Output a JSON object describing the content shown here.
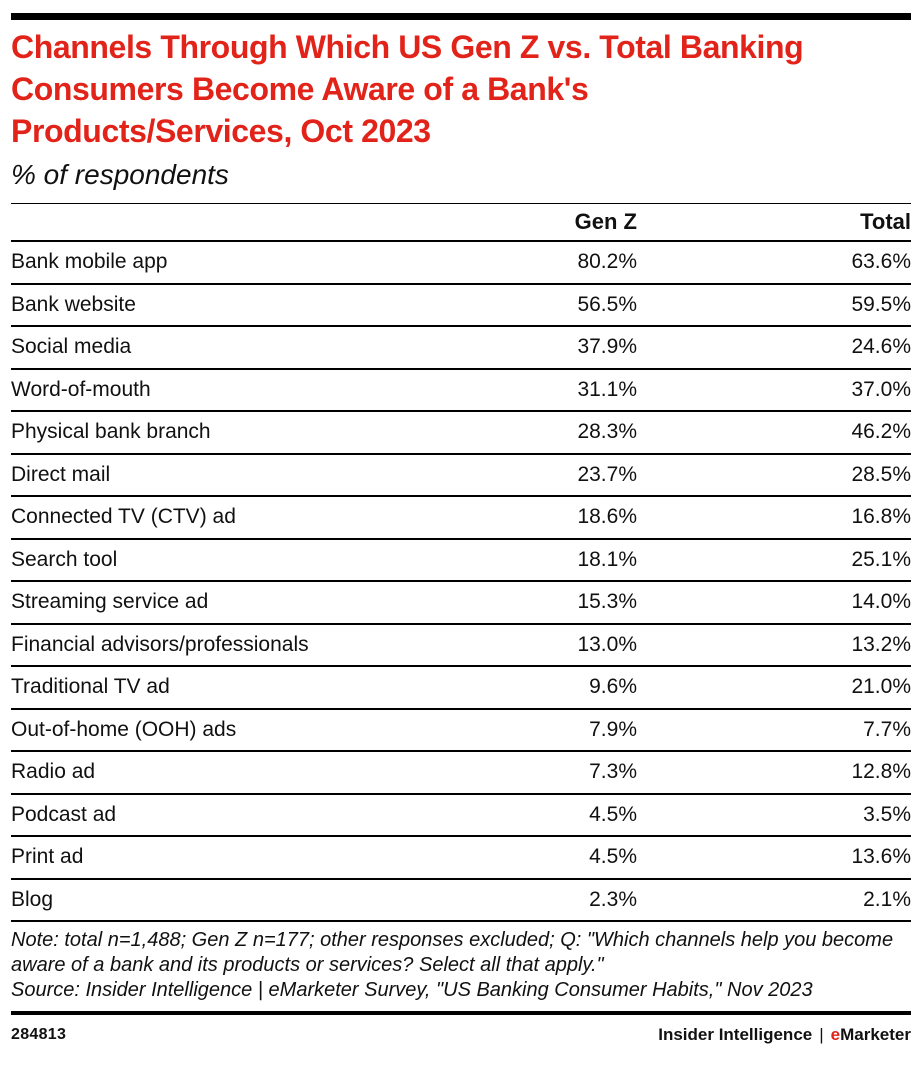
{
  "colors": {
    "accent_red": "#e2231a",
    "bar_black": "#000000",
    "text": "#111111"
  },
  "header": {
    "title": "Channels Through Which US Gen Z vs. Total Banking Consumers Become Aware of a Bank's Products/Services, Oct 2023",
    "subtitle": "% of respondents"
  },
  "table": {
    "header": {
      "genz": "Gen Z",
      "total": "Total"
    },
    "rows": [
      {
        "label": "Bank mobile app",
        "genz": "80.2%",
        "total": "63.6%"
      },
      {
        "label": "Bank website",
        "genz": "56.5%",
        "total": "59.5%"
      },
      {
        "label": "Social media",
        "genz": "37.9%",
        "total": "24.6%"
      },
      {
        "label": "Word-of-mouth",
        "genz": "31.1%",
        "total": "37.0%"
      },
      {
        "label": "Physical bank branch",
        "genz": "28.3%",
        "total": "46.2%"
      },
      {
        "label": "Direct mail",
        "genz": "23.7%",
        "total": "28.5%"
      },
      {
        "label": "Connected TV (CTV) ad",
        "genz": "18.6%",
        "total": "16.8%"
      },
      {
        "label": "Search tool",
        "genz": "18.1%",
        "total": "25.1%"
      },
      {
        "label": "Streaming service ad",
        "genz": "15.3%",
        "total": "14.0%"
      },
      {
        "label": "Financial advisors/professionals",
        "genz": "13.0%",
        "total": "13.2%"
      },
      {
        "label": "Traditional TV ad",
        "genz": "9.6%",
        "total": "21.0%"
      },
      {
        "label": "Out-of-home (OOH) ads",
        "genz": "7.9%",
        "total": "7.7%"
      },
      {
        "label": "Radio ad",
        "genz": "7.3%",
        "total": "12.8%"
      },
      {
        "label": "Podcast ad",
        "genz": "4.5%",
        "total": "3.5%"
      },
      {
        "label": "Print ad",
        "genz": "4.5%",
        "total": "13.6%"
      },
      {
        "label": "Blog",
        "genz": "2.3%",
        "total": "2.1%"
      }
    ]
  },
  "footnote": {
    "note": "Note: total n=1,488; Gen Z n=177; other responses excluded; Q: \"Which channels help you become aware of a bank and its products or services? Select all that apply.\"",
    "source": "Source: Insider Intelligence | eMarketer Survey, \"US Banking Consumer Habits,\" Nov 2023"
  },
  "footer": {
    "chart_id": "284813",
    "brand_left": "Insider Intelligence",
    "brand_sep": "|",
    "brand_accent": "e",
    "brand_rest": "Marketer"
  },
  "chart_data": {
    "type": "table",
    "title": "Channels Through Which US Gen Z vs. Total Banking Consumers Become Aware of a Bank's Products/Services, Oct 2023",
    "subtitle": "% of respondents",
    "unit": "%",
    "categories": [
      "Bank mobile app",
      "Bank website",
      "Social media",
      "Word-of-mouth",
      "Physical bank branch",
      "Direct mail",
      "Connected TV (CTV) ad",
      "Search tool",
      "Streaming service ad",
      "Financial advisors/professionals",
      "Traditional TV ad",
      "Out-of-home (OOH) ads",
      "Radio ad",
      "Podcast ad",
      "Print ad",
      "Blog"
    ],
    "series": [
      {
        "name": "Gen Z",
        "values": [
          80.2,
          56.5,
          37.9,
          31.1,
          28.3,
          23.7,
          18.6,
          18.1,
          15.3,
          13.0,
          9.6,
          7.9,
          7.3,
          4.5,
          4.5,
          2.3
        ]
      },
      {
        "name": "Total",
        "values": [
          63.6,
          59.5,
          24.6,
          37.0,
          46.2,
          28.5,
          16.8,
          25.1,
          14.0,
          13.2,
          21.0,
          7.7,
          12.8,
          3.5,
          13.6,
          2.1
        ]
      }
    ],
    "note": "Note: total n=1,488; Gen Z n=177; other responses excluded; Q: \"Which channels help you become aware of a bank and its products or services? Select all that apply.\"",
    "source": "Source: Insider Intelligence | eMarketer Survey, \"US Banking Consumer Habits,\" Nov 2023",
    "chart_id": "284813"
  }
}
